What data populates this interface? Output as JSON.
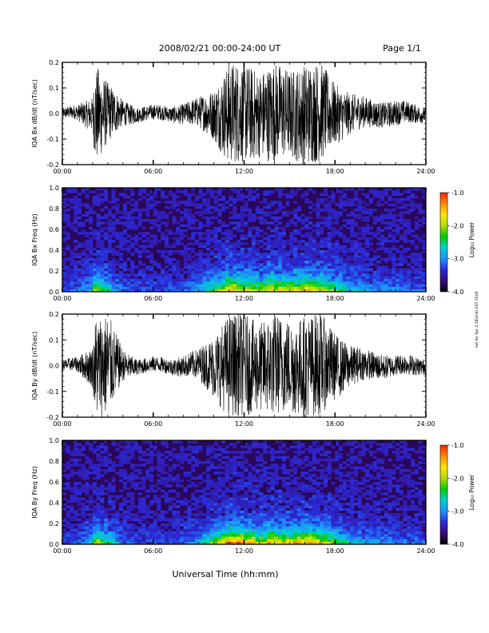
{
  "header": {
    "date_range": "2008/02/21  00:00-24:00 UT",
    "page": "Page 1/1"
  },
  "side_note": "not for Apr 4 18(104) EST 2018",
  "colors": {
    "trace": "#000000",
    "colormap": [
      "#000000",
      "#3a0a7a",
      "#2a2ad8",
      "#1e90ff",
      "#00d2d2",
      "#00c800",
      "#b4dc00",
      "#ffe600",
      "#ff8c00",
      "#ff1e00"
    ]
  },
  "chart_data": [
    {
      "type": "line",
      "ylabel": "IQA Bx dB/dt (nT/sec)",
      "xlabel": "",
      "ylim": [
        -0.2,
        0.2
      ],
      "yticks": [
        "0.2",
        "0.1",
        "0.0",
        "-0.1",
        "-0.2"
      ],
      "xlim": [
        0,
        24
      ],
      "xticks": [
        "00:00",
        "06:00",
        "12:00",
        "18:00",
        "24:00"
      ],
      "envelope": {
        "t_hours": [
          0,
          1,
          2,
          2.2,
          3,
          4,
          5,
          6,
          7,
          8,
          9,
          10,
          11,
          12,
          13,
          14,
          15,
          16,
          17,
          18,
          19,
          20,
          21,
          22,
          23,
          24
        ],
        "amplitude": [
          0.02,
          0.03,
          0.07,
          0.2,
          0.12,
          0.05,
          0.03,
          0.03,
          0.03,
          0.04,
          0.06,
          0.1,
          0.2,
          0.2,
          0.17,
          0.2,
          0.17,
          0.2,
          0.2,
          0.12,
          0.08,
          0.06,
          0.05,
          0.05,
          0.04,
          0.03
        ]
      }
    },
    {
      "type": "heatmap",
      "ylabel": "IQA Bx Freq (Hz)",
      "xlabel": "",
      "ylim": [
        0,
        1.0
      ],
      "yticks": [
        "1.0",
        "0.8",
        "0.6",
        "0.4",
        "0.2",
        "0.0"
      ],
      "xlim": [
        0,
        24
      ],
      "xticks": [
        "00:00",
        "06:00",
        "12:00",
        "18:00",
        "24:00"
      ],
      "colorbar": {
        "label": "Log₁₀ Power",
        "range": [
          -4.0,
          -1.0
        ],
        "ticks": [
          "-1.0",
          "-2.0",
          "-3.0",
          "-4.0"
        ]
      },
      "activity": {
        "t_hours": [
          0,
          1,
          2,
          2.2,
          3,
          4,
          5,
          6,
          7,
          8,
          9,
          10,
          11,
          12,
          13,
          14,
          15,
          16,
          17,
          18,
          19,
          20,
          21,
          22,
          23,
          24
        ],
        "intensity": [
          0.1,
          0.15,
          0.3,
          0.6,
          0.35,
          0.15,
          0.1,
          0.1,
          0.12,
          0.15,
          0.25,
          0.45,
          0.75,
          0.65,
          0.55,
          0.7,
          0.6,
          0.7,
          0.65,
          0.45,
          0.3,
          0.25,
          0.2,
          0.2,
          0.15,
          0.12
        ]
      }
    },
    {
      "type": "line",
      "ylabel": "IQA By dB/dt (nT/sec)",
      "xlabel": "",
      "ylim": [
        -0.2,
        0.2
      ],
      "yticks": [
        "0.2",
        "0.1",
        "0.0",
        "-0.1",
        "-0.2"
      ],
      "xlim": [
        0,
        24
      ],
      "xticks": [
        "00:00",
        "06:00",
        "12:00",
        "18:00",
        "24:00"
      ],
      "envelope": {
        "t_hours": [
          0,
          1,
          2,
          2.2,
          3,
          4,
          5,
          6,
          7,
          8,
          9,
          10,
          11,
          12,
          13,
          14,
          15,
          16,
          17,
          18,
          19,
          20,
          21,
          22,
          23,
          24
        ],
        "amplitude": [
          0.02,
          0.03,
          0.08,
          0.2,
          0.2,
          0.06,
          0.03,
          0.03,
          0.03,
          0.04,
          0.06,
          0.12,
          0.2,
          0.2,
          0.17,
          0.2,
          0.18,
          0.2,
          0.2,
          0.13,
          0.08,
          0.06,
          0.05,
          0.04,
          0.04,
          0.03
        ]
      }
    },
    {
      "type": "heatmap",
      "ylabel": "IQA By Freq (Hz)",
      "xlabel": "Universal Time (hh:mm)",
      "ylim": [
        0,
        1.0
      ],
      "yticks": [
        "1.0",
        "0.8",
        "0.6",
        "0.4",
        "0.2",
        "0.0"
      ],
      "xlim": [
        0,
        24
      ],
      "xticks": [
        "00:00",
        "06:00",
        "12:00",
        "18:00",
        "24:00"
      ],
      "colorbar": {
        "label": "Log₁₀ Power",
        "range": [
          -4.0,
          -1.0
        ],
        "ticks": [
          "-1.0",
          "-2.0",
          "-3.0",
          "-4.0"
        ]
      },
      "activity": {
        "t_hours": [
          0,
          1,
          2,
          2.2,
          3,
          4,
          5,
          6,
          7,
          8,
          9,
          10,
          11,
          12,
          13,
          14,
          15,
          16,
          17,
          18,
          19,
          20,
          21,
          22,
          23,
          24
        ],
        "intensity": [
          0.1,
          0.15,
          0.3,
          0.6,
          0.4,
          0.15,
          0.1,
          0.1,
          0.12,
          0.15,
          0.25,
          0.5,
          0.85,
          0.75,
          0.6,
          0.75,
          0.65,
          0.75,
          0.7,
          0.5,
          0.3,
          0.25,
          0.2,
          0.18,
          0.15,
          0.12
        ]
      }
    }
  ]
}
